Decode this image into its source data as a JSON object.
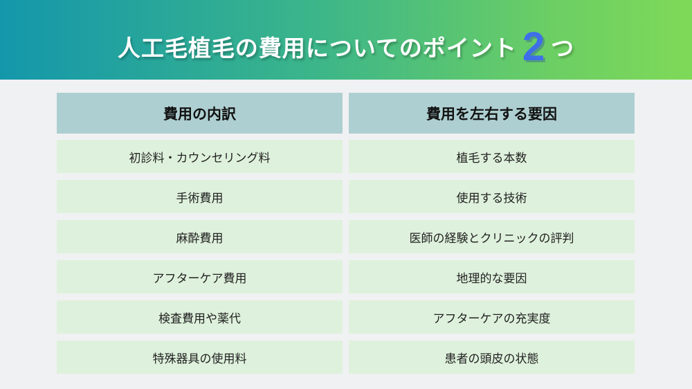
{
  "title": {
    "before": "人工毛植毛の費用についてのポイント",
    "number": "2",
    "after": "つ"
  },
  "colors": {
    "header_cell": "#aecfd1",
    "body_cell": "#def1dc",
    "number": "#3f6fe8"
  },
  "table": {
    "columns": [
      {
        "header": "費用の内訳",
        "items": [
          "初診料・カウンセリング料",
          "手術費用",
          "麻酔費用",
          "アフターケア費用",
          "検査費用や薬代",
          "特殊器具の使用料"
        ]
      },
      {
        "header": "費用を左右する要因",
        "items": [
          "植毛する本数",
          "使用する技術",
          "医師の経験とクリニックの評判",
          "地理的な要因",
          "アフターケアの充実度",
          "患者の頭皮の状態"
        ]
      }
    ]
  }
}
